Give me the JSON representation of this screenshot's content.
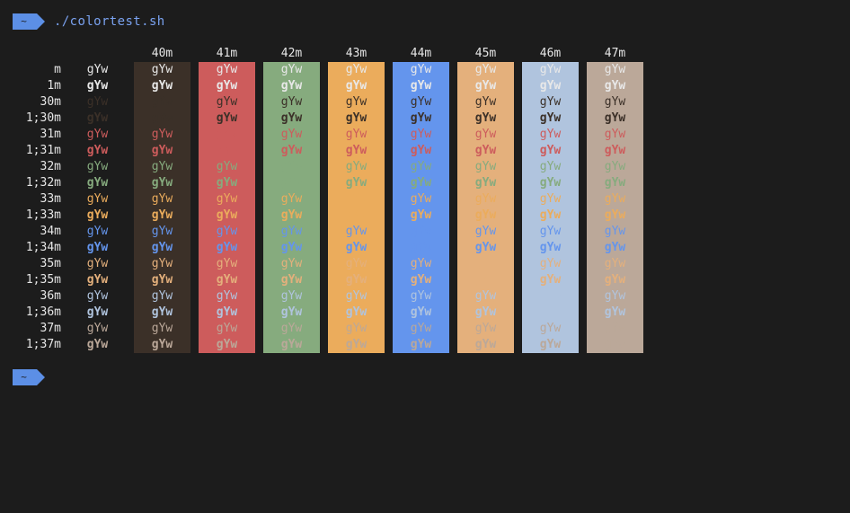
{
  "prompt": {
    "badge": "~",
    "command": "./colortest.sh"
  },
  "colors": {
    "prompt_badge": "#5c8fe6",
    "terminal_bg": "#1c1c1c"
  },
  "table": {
    "sample_text": "gYw",
    "bg_columns": [
      {
        "label": "40m",
        "color": "#3b3028"
      },
      {
        "label": "41m",
        "color": "#cd5c5c"
      },
      {
        "label": "42m",
        "color": "#86ab7e"
      },
      {
        "label": "43m",
        "color": "#ebac5c"
      },
      {
        "label": "44m",
        "color": "#6495ed"
      },
      {
        "label": "45m",
        "color": "#e4b07c"
      },
      {
        "label": "46m",
        "color": "#b0c4de"
      },
      {
        "label": "47m",
        "color": "#bba899"
      }
    ],
    "rows": [
      {
        "label": "m",
        "fg": "default",
        "bold": false
      },
      {
        "label": "1m",
        "fg": "default",
        "bold": true
      },
      {
        "label": "30m",
        "fg": "#3b3028",
        "bold": false
      },
      {
        "label": "1;30m",
        "fg": "#3b3028",
        "bold": true
      },
      {
        "label": "31m",
        "fg": "#cd5c5c",
        "bold": false
      },
      {
        "label": "1;31m",
        "fg": "#cd5c5c",
        "bold": true
      },
      {
        "label": "32m",
        "fg": "#86ab7e",
        "bold": false
      },
      {
        "label": "1;32m",
        "fg": "#86ab7e",
        "bold": true
      },
      {
        "label": "33m",
        "fg": "#ebac5c",
        "bold": false
      },
      {
        "label": "1;33m",
        "fg": "#ebac5c",
        "bold": true
      },
      {
        "label": "34m",
        "fg": "#6495ed",
        "bold": false
      },
      {
        "label": "1;34m",
        "fg": "#6495ed",
        "bold": true
      },
      {
        "label": "35m",
        "fg": "#e4b07c",
        "bold": false
      },
      {
        "label": "1;35m",
        "fg": "#e4b07c",
        "bold": true
      },
      {
        "label": "36m",
        "fg": "#b0c4de",
        "bold": false
      },
      {
        "label": "1;36m",
        "fg": "#b0c4de",
        "bold": true
      },
      {
        "label": "37m",
        "fg": "#bba899",
        "bold": false
      },
      {
        "label": "1;37m",
        "fg": "#bba899",
        "bold": true
      }
    ],
    "default_fg": "#e8e8e8"
  }
}
